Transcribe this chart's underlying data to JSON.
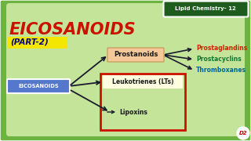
{
  "bg_color": "#6db33f",
  "bg_inner_color": "#d4edaa",
  "title": "EICOSANOIDS",
  "title_color": "#cc1100",
  "subtitle": "(PART-2)",
  "subtitle_bg": "#f5e600",
  "subtitle_text_color": "#000080",
  "header_box_color": "#1e5c1e",
  "header_text": "Lipid Chemistry- 12",
  "header_text_color": "#ffffff",
  "eicosanoids_box_color": "#5577cc",
  "eicosanoids_text": "EICOSANOIDS",
  "eicosanoids_text_color": "#ffffff",
  "prostanoids_box_color": "#f5c89a",
  "prostanoids_text": "Prostanoids",
  "leukotrienes_text": "Leukotrienes (LTs)",
  "leukotrienes_box_color": "#fffde0",
  "lipoxins_text": "Lipoxins",
  "red_box_color": "#cc1100",
  "arrow_color": "#1a1a2e",
  "prostaglandins_text": "Prostaglandins",
  "prostaglandins_color": "#cc2200",
  "prostacyclins_text": "Prostacyclins",
  "prostacyclins_color": "#117733",
  "thromboxanes_text": "Thromboxanes",
  "thromboxanes_color": "#006699",
  "logo_text": "D2",
  "logo_color": "#cc0000",
  "logo_bg": "#ffffff"
}
